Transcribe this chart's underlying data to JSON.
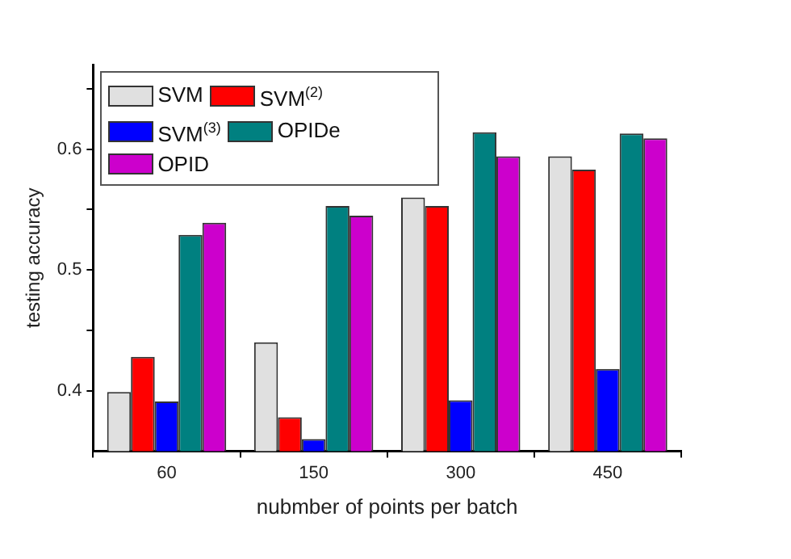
{
  "chart_data": {
    "type": "bar",
    "xlabel": "nubmber of points per batch",
    "ylabel": "testing accuracy",
    "categories": [
      "60",
      "150",
      "300",
      "450"
    ],
    "series": [
      {
        "name": "SVM",
        "color": "#e0e0e0",
        "values": [
          0.399,
          0.44,
          0.56,
          0.594
        ]
      },
      {
        "name": "SVM$^{(2)}$",
        "color": "#ff0000",
        "values": [
          0.428,
          0.378,
          0.553,
          0.583
        ]
      },
      {
        "name": "SVM$^{(3)}$",
        "color": "#0000ff",
        "values": [
          0.391,
          0.36,
          0.392,
          0.418
        ]
      },
      {
        "name": "OPIDe",
        "color": "#008080",
        "values": [
          0.529,
          0.553,
          0.614,
          0.613
        ]
      },
      {
        "name": "OPID",
        "color": "#cc00cc",
        "values": [
          0.539,
          0.545,
          0.594,
          0.609
        ]
      }
    ],
    "ylim": [
      0.35,
      0.67
    ],
    "yticks": [
      0.4,
      {
        "value": 0.45,
        "label": null
      },
      0.5,
      {
        "value": 0.55,
        "label": null
      },
      0.6,
      {
        "value": 0.65,
        "label": null
      }
    ],
    "legend": "top left",
    "grid": false
  }
}
